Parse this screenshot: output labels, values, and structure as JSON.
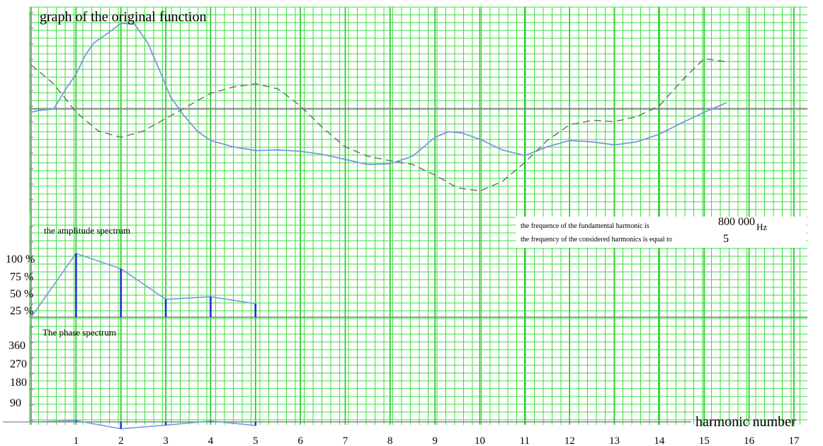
{
  "titles": {
    "original": "graph of the original function",
    "amplitude": "the amplitude spectrum",
    "phase": "The phase spectrum"
  },
  "info": {
    "fundamental_label": "the frequence of the fundamental harmonic is",
    "fundamental_value": "800 000",
    "fundamental_unit": "Hz",
    "considered_label": "the frequency of the considered harmonics is equal to",
    "considered_value": "5"
  },
  "x_axis": {
    "label": "harmonic number",
    "ticks": [
      "1",
      "2",
      "3",
      "4",
      "5",
      "6",
      "7",
      "8",
      "9",
      "10",
      "11",
      "12",
      "13",
      "14",
      "15",
      "16",
      "17"
    ]
  },
  "amplitude_axis": {
    "ticks": [
      "100 %",
      "75 %",
      "50 %",
      "25 %"
    ]
  },
  "phase_axis": {
    "ticks": [
      "360",
      "270",
      "180",
      "90"
    ]
  },
  "colors": {
    "grid": "#3ddc3d",
    "signal": "#7b98dd",
    "harmonic": "#6a6a6a",
    "stem": "#1a2fd0",
    "axis": "#8a7f8f"
  },
  "chart_data": [
    {
      "type": "line",
      "title": "graph of the original function",
      "x_range": [
        0,
        17.5
      ],
      "y_range": [
        -1.6,
        1.4
      ],
      "series": [
        {
          "style": "solid",
          "x": [
            0,
            0.2,
            0.5,
            0.8,
            1.0,
            1.2,
            1.4,
            1.7,
            2.0,
            2.3,
            2.6,
            2.9,
            3.1,
            3.4,
            3.7,
            4.0,
            4.5,
            5.0,
            5.5,
            6.0,
            6.5,
            7.0,
            7.5,
            8.0,
            8.5,
            9.0,
            9.3,
            9.6,
            10.0,
            10.5,
            11.0,
            11.5,
            12.0,
            12.5,
            13.0,
            13.5,
            14.0,
            14.5,
            15.0,
            15.5
          ],
          "y": [
            -0.05,
            -0.02,
            0.0,
            0.35,
            0.55,
            0.85,
            1.05,
            1.2,
            1.36,
            1.35,
            1.05,
            0.55,
            0.2,
            -0.1,
            -0.35,
            -0.5,
            -0.6,
            -0.66,
            -0.65,
            -0.67,
            -0.72,
            -0.8,
            -0.88,
            -0.87,
            -0.75,
            -0.45,
            -0.36,
            -0.38,
            -0.48,
            -0.65,
            -0.74,
            -0.6,
            -0.5,
            -0.52,
            -0.57,
            -0.52,
            -0.4,
            -0.22,
            -0.05,
            0.1
          ]
        },
        {
          "style": "dashed",
          "x": [
            0,
            0.5,
            1.0,
            1.5,
            2.0,
            2.5,
            3.0,
            3.5,
            4.0,
            4.5,
            5.0,
            5.5,
            6.0,
            6.5,
            7.0,
            7.5,
            8.0,
            8.5,
            9.0,
            9.5,
            10.0,
            10.5,
            11.0,
            11.5,
            12.0,
            12.5,
            13.0,
            13.5,
            14.0,
            14.5,
            15.0,
            15.5
          ],
          "y": [
            0.7,
            0.4,
            -0.05,
            -0.35,
            -0.45,
            -0.35,
            -0.15,
            0.05,
            0.25,
            0.35,
            0.4,
            0.32,
            0.05,
            -0.3,
            -0.6,
            -0.75,
            -0.82,
            -0.88,
            -1.05,
            -1.25,
            -1.3,
            -1.15,
            -0.85,
            -0.5,
            -0.25,
            -0.18,
            -0.2,
            -0.12,
            0.05,
            0.45,
            0.8,
            0.75
          ]
        }
      ]
    },
    {
      "type": "bar",
      "title": "the amplitude spectrum",
      "categories": [
        1,
        2,
        3,
        4,
        5
      ],
      "values": [
        100,
        76,
        28,
        32,
        21
      ],
      "envelope": {
        "x": [
          0,
          1,
          2,
          3,
          4,
          5
        ],
        "y": [
          0,
          100,
          76,
          28,
          32,
          21
        ]
      },
      "ylim": [
        0,
        100
      ]
    },
    {
      "type": "line",
      "title": "The phase spectrum",
      "x": [
        0,
        1,
        2,
        3,
        4,
        5
      ],
      "y": [
        0,
        8,
        -38,
        -18,
        5,
        -20
      ],
      "stems": true,
      "ylim": [
        -40,
        360
      ]
    }
  ]
}
